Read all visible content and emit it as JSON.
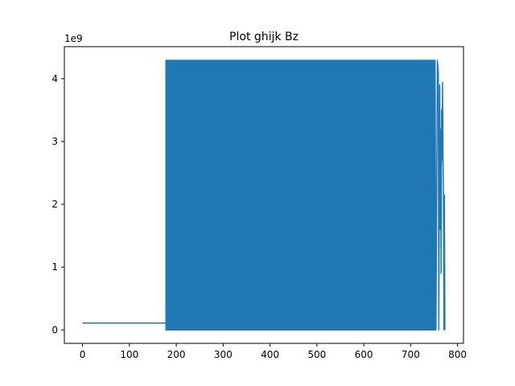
{
  "chart_data": {
    "type": "line",
    "title": "Plot ghijk Bz",
    "xlabel": "",
    "ylabel": "",
    "y_offset_text": "1e9",
    "xlim": [
      -38.7,
      812.7
    ],
    "ylim": [
      -214000000,
      4510000000
    ],
    "x_ticks": [
      0,
      100,
      200,
      300,
      400,
      500,
      600,
      700,
      800
    ],
    "x_tick_labels": [
      "0",
      "100",
      "200",
      "300",
      "400",
      "500",
      "600",
      "700",
      "800"
    ],
    "y_ticks": [
      0,
      1000000000,
      2000000000,
      3000000000,
      4000000000
    ],
    "y_tick_labels": [
      "0",
      "1",
      "2",
      "3",
      "4"
    ],
    "grid": false,
    "legend": "none",
    "series": [
      {
        "color": "#1f77b4",
        "flat_segment": {
          "x_start": 0,
          "x_end": 178,
          "y": 110000000
        },
        "oscillation": {
          "x_start": 178,
          "x_end": 752,
          "y_min": 0,
          "y_max": 4290000000
        },
        "tail": [
          {
            "x": 752,
            "y": 4290000000
          },
          {
            "x": 754,
            "y": 0
          },
          {
            "x": 757,
            "y": 4290000000
          },
          {
            "x": 759,
            "y": 4100000000
          },
          {
            "x": 760,
            "y": 0
          },
          {
            "x": 762,
            "y": 3900000000
          },
          {
            "x": 763,
            "y": 1600000000
          },
          {
            "x": 764,
            "y": 3200000000
          },
          {
            "x": 765,
            "y": 900000000
          },
          {
            "x": 766,
            "y": 3500000000
          },
          {
            "x": 767,
            "y": 2700000000
          },
          {
            "x": 768,
            "y": 3940000000
          },
          {
            "x": 769,
            "y": 2800000000
          },
          {
            "x": 770,
            "y": 2150000000
          },
          {
            "x": 771,
            "y": 0
          },
          {
            "x": 772,
            "y": 2150000000
          },
          {
            "x": 773,
            "y": 0
          }
        ]
      }
    ]
  }
}
